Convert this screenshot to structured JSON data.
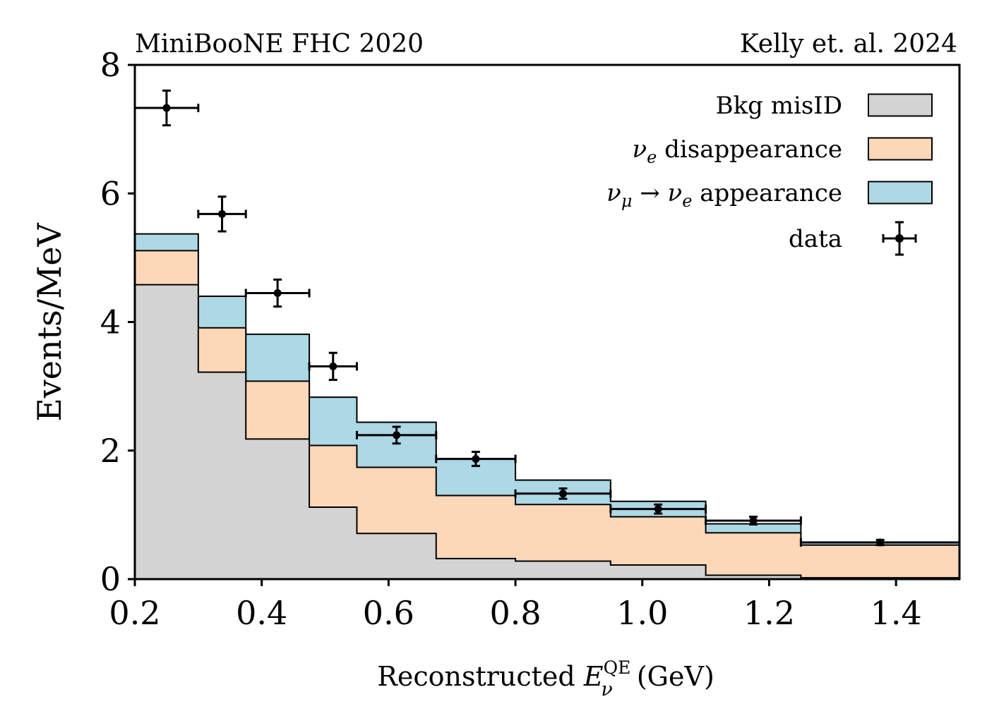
{
  "chart_data": {
    "type": "bar",
    "style": "stacked-step-histogram",
    "title_left": "MiniBooNE FHC 2020",
    "title_right": "Kelly et. al. 2024",
    "xlabel": "Reconstructed E_ν^QE (GeV)",
    "xlabel_parts": {
      "prefix": "Reconstructed ",
      "symbol": "E",
      "sub": "ν",
      "sup": "QE",
      "suffix": " (GeV)"
    },
    "ylabel": "Events/MeV",
    "xlim": [
      0.2,
      1.5
    ],
    "ylim": [
      0,
      8
    ],
    "xticks": [
      0.2,
      0.4,
      0.6,
      0.8,
      1.0,
      1.2,
      1.4
    ],
    "xtick_labels": [
      "0.2",
      "0.4",
      "0.6",
      "0.8",
      "1.0",
      "1.2",
      "1.4"
    ],
    "yticks": [
      0,
      2,
      4,
      6,
      8
    ],
    "ytick_labels": [
      "0",
      "2",
      "4",
      "6",
      "8"
    ],
    "grid": false,
    "legend_position": "top-right",
    "bin_edges": [
      0.2,
      0.3,
      0.375,
      0.475,
      0.55,
      0.675,
      0.8,
      0.95,
      1.1,
      1.25,
      1.5
    ],
    "series": [
      {
        "name": "Bkg misID",
        "color": "#d3d3d3",
        "values": [
          4.58,
          3.22,
          2.18,
          1.12,
          0.71,
          0.32,
          0.28,
          0.22,
          0.06,
          0.02
        ]
      },
      {
        "name": "νe disappearance",
        "color": "#fdd8b8",
        "values": [
          0.53,
          0.69,
          0.9,
          0.96,
          1.03,
          0.98,
          0.88,
          0.75,
          0.66,
          0.51
        ]
      },
      {
        "name": "νμ → νe appearance",
        "color": "#add8e6",
        "values": [
          0.26,
          0.49,
          0.73,
          0.75,
          0.7,
          0.57,
          0.38,
          0.24,
          0.14,
          0.04
        ]
      }
    ],
    "data_points": {
      "name": "data",
      "color": "#000000",
      "points": [
        {
          "x": 0.25,
          "y": 7.33,
          "xlo": 0.2,
          "xhi": 0.3,
          "yerr": 0.27
        },
        {
          "x": 0.3375,
          "y": 5.68,
          "xlo": 0.3,
          "xhi": 0.375,
          "yerr": 0.27
        },
        {
          "x": 0.425,
          "y": 4.45,
          "xlo": 0.375,
          "xhi": 0.475,
          "yerr": 0.21
        },
        {
          "x": 0.5125,
          "y": 3.31,
          "xlo": 0.475,
          "xhi": 0.55,
          "yerr": 0.21
        },
        {
          "x": 0.6125,
          "y": 2.24,
          "xlo": 0.55,
          "xhi": 0.675,
          "yerr": 0.13
        },
        {
          "x": 0.7375,
          "y": 1.87,
          "xlo": 0.675,
          "xhi": 0.8,
          "yerr": 0.11
        },
        {
          "x": 0.875,
          "y": 1.33,
          "xlo": 0.8,
          "xhi": 0.95,
          "yerr": 0.08
        },
        {
          "x": 1.025,
          "y": 1.09,
          "xlo": 0.95,
          "xhi": 1.1,
          "yerr": 0.07
        },
        {
          "x": 1.175,
          "y": 0.91,
          "xlo": 1.1,
          "xhi": 1.25,
          "yerr": 0.06
        },
        {
          "x": 1.375,
          "y": 0.57,
          "xlo": 1.25,
          "xhi": 1.5,
          "yerr": 0.04
        }
      ]
    },
    "legend": [
      {
        "label": "Bkg misID",
        "parts": [
          {
            "t": "Bkg misID"
          }
        ],
        "kind": "patch",
        "color": "#d3d3d3"
      },
      {
        "label": "νe disappearance",
        "parts": [
          {
            "t": "ν",
            "i": true
          },
          {
            "t": "e",
            "i": true,
            "sub": true
          },
          {
            "t": " disappearance"
          }
        ],
        "kind": "patch",
        "color": "#fdd8b8"
      },
      {
        "label": "νμ → νe appearance",
        "parts": [
          {
            "t": "ν",
            "i": true
          },
          {
            "t": "μ",
            "i": true,
            "sub": true
          },
          {
            "t": " → "
          },
          {
            "t": "ν",
            "i": true
          },
          {
            "t": "e",
            "i": true,
            "sub": true
          },
          {
            "t": " appearance"
          }
        ],
        "kind": "patch",
        "color": "#add8e6"
      },
      {
        "label": "data",
        "parts": [
          {
            "t": "data"
          }
        ],
        "kind": "errorbar",
        "color": "#000000"
      }
    ]
  }
}
